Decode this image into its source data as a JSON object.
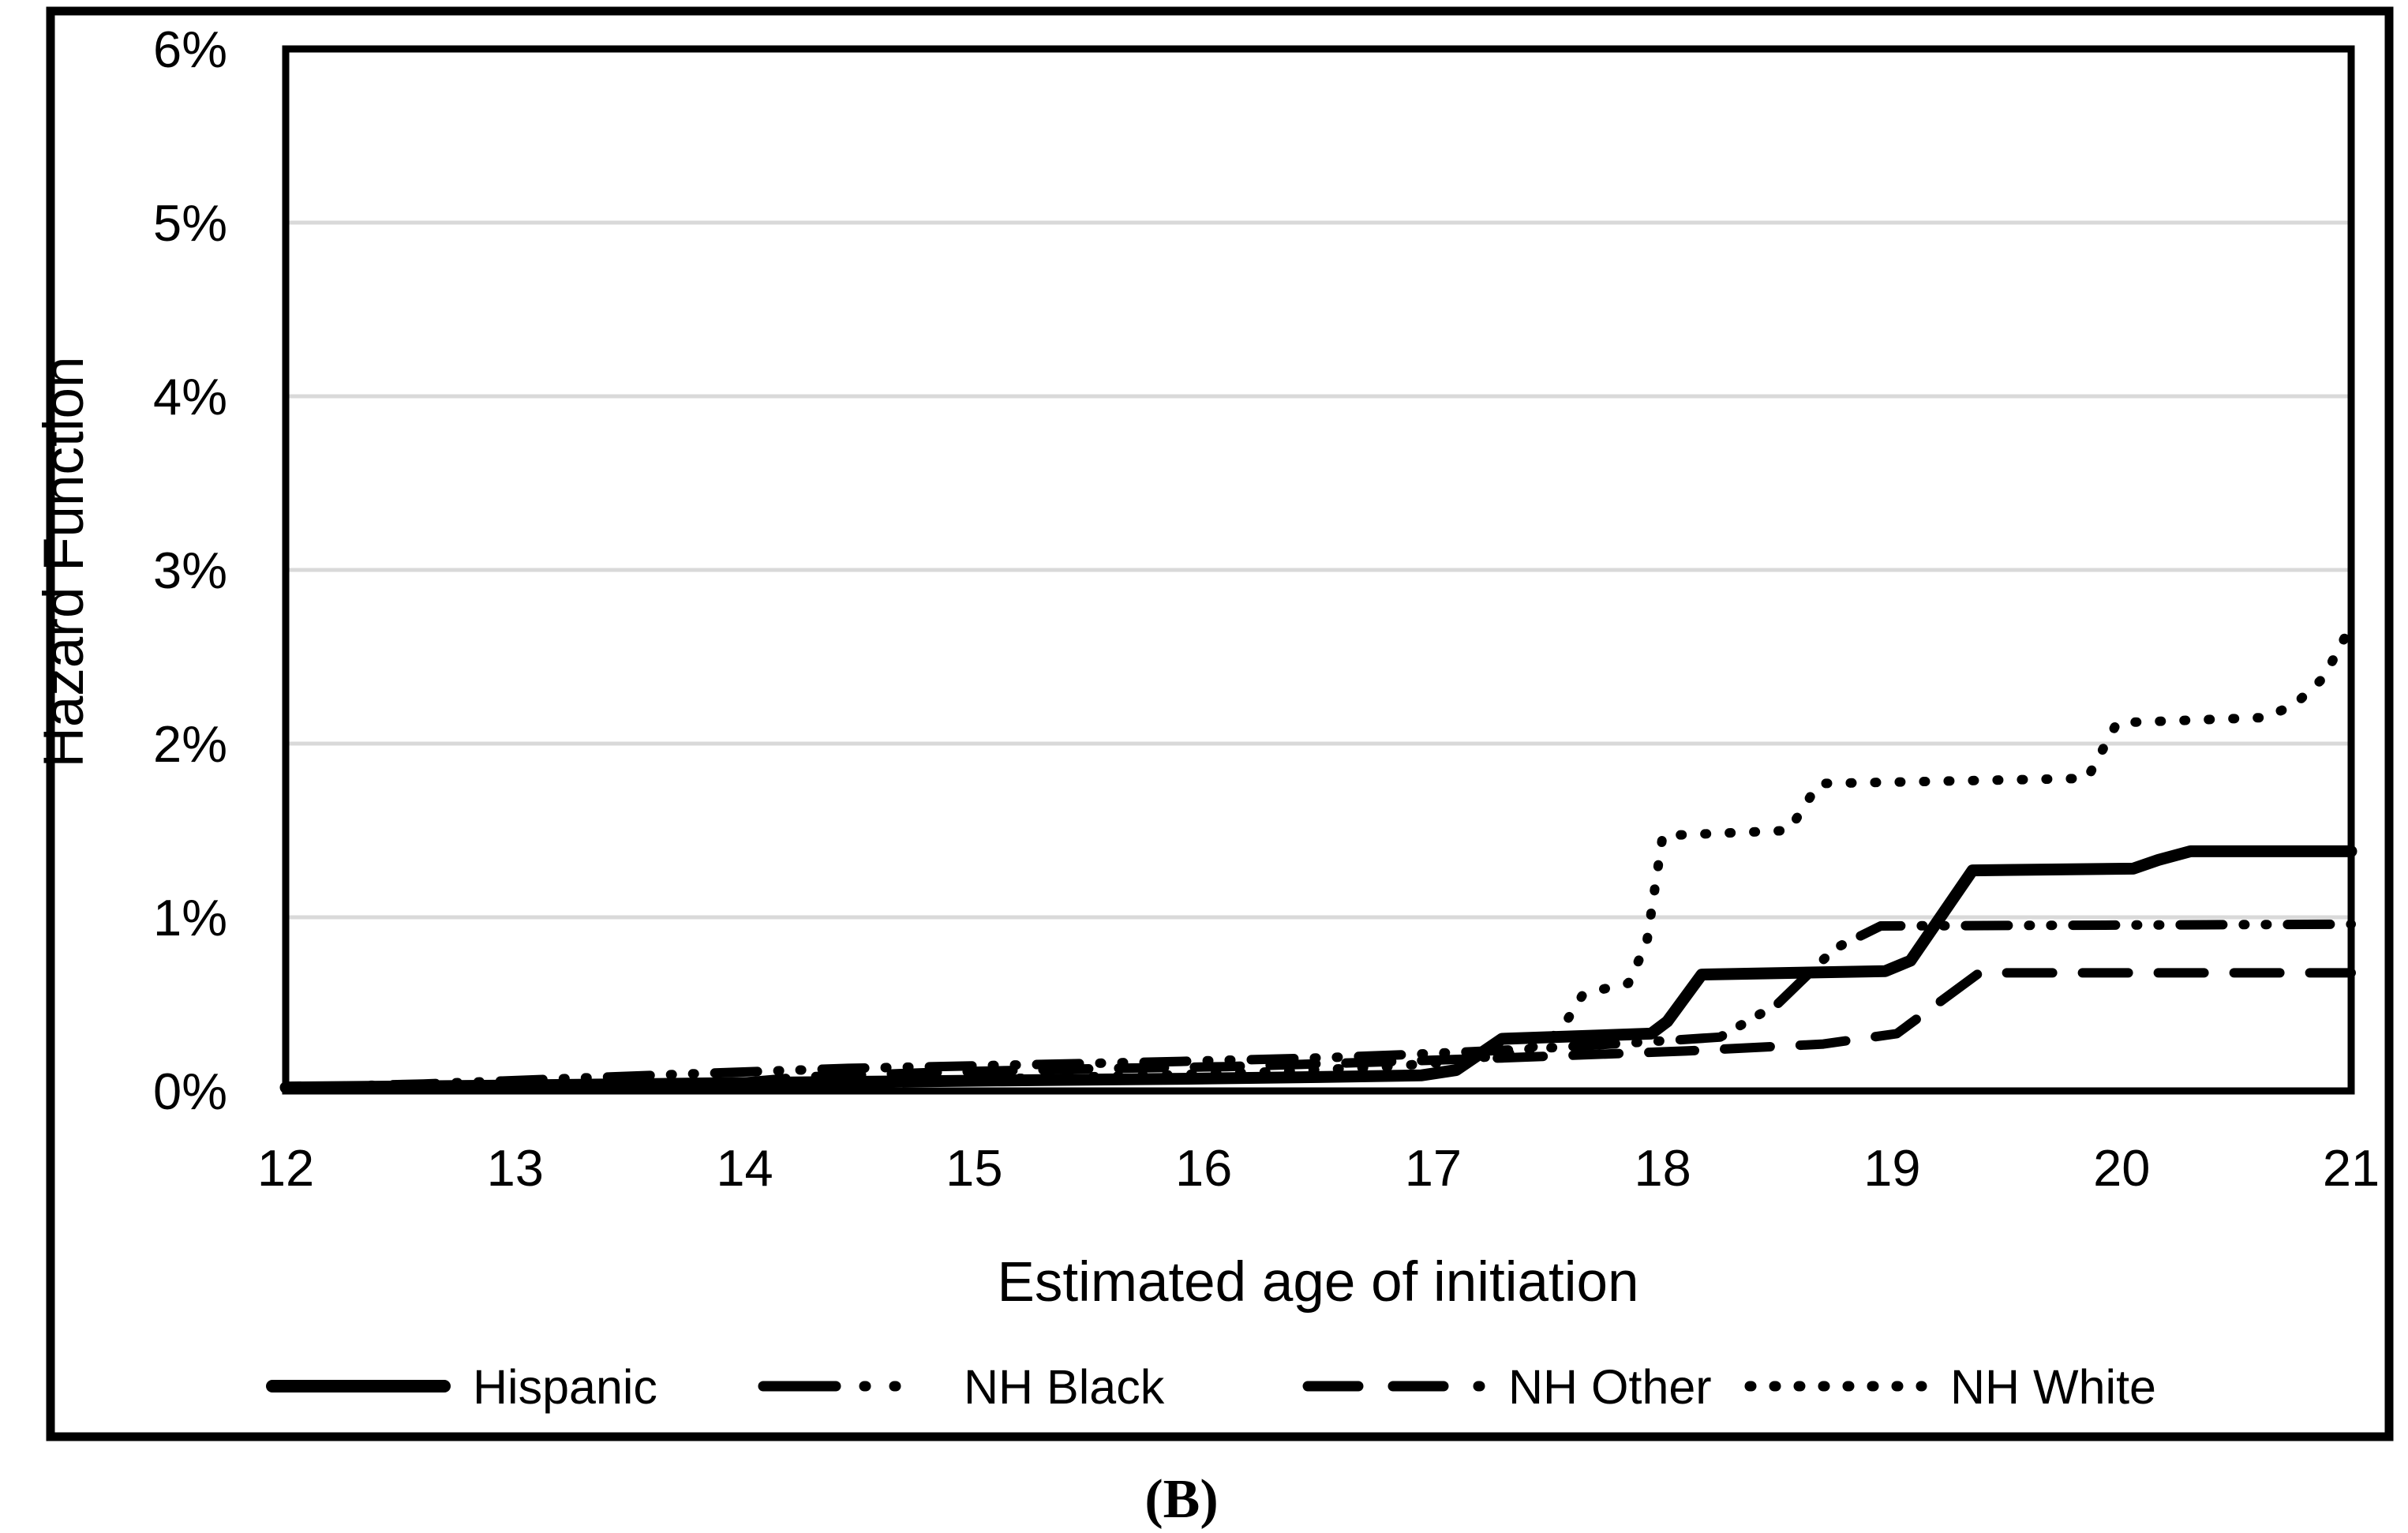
{
  "figure": {
    "panel_label": "(B)"
  },
  "chart_data": {
    "type": "line",
    "title": "",
    "xlabel": "Estimated age of initiation",
    "ylabel": "Hazard Function",
    "xlim": [
      12,
      21
    ],
    "ylim_percent": [
      0,
      6
    ],
    "x_ticks": [
      12,
      13,
      14,
      15,
      16,
      17,
      18,
      19,
      20,
      21
    ],
    "y_ticks": [
      "0%",
      "1%",
      "2%",
      "3%",
      "4%",
      "5%",
      "6%"
    ],
    "grid": "horizontal-gray-lines-at-each-1-percent",
    "legend_position": "bottom",
    "colors": {
      "line": "#000000",
      "gridline": "#d9d9d9",
      "background": "#ffffff",
      "border": "#000000"
    },
    "series": [
      {
        "name": "Hispanic",
        "line_style": "solid",
        "points": [
          [
            12,
            0.02
          ],
          [
            12.9,
            0.03
          ],
          [
            13.6,
            0.04
          ],
          [
            14.3,
            0.05
          ],
          [
            15.1,
            0.06
          ],
          [
            15.9,
            0.07
          ],
          [
            16.5,
            0.08
          ],
          [
            16.95,
            0.09
          ],
          [
            17.1,
            0.12
          ],
          [
            17.3,
            0.3
          ],
          [
            17.95,
            0.33
          ],
          [
            18.02,
            0.4
          ],
          [
            18.17,
            0.67
          ],
          [
            18.97,
            0.69
          ],
          [
            19.08,
            0.75
          ],
          [
            19.35,
            1.27
          ],
          [
            20.05,
            1.28
          ],
          [
            20.16,
            1.33
          ],
          [
            20.3,
            1.38
          ],
          [
            21,
            1.38
          ]
        ]
      },
      {
        "name": "NH Black",
        "line_style": "dash-dot-dot",
        "points": [
          [
            12,
            0.02
          ],
          [
            12.6,
            0.04
          ],
          [
            13.2,
            0.07
          ],
          [
            13.8,
            0.1
          ],
          [
            14.45,
            0.13
          ],
          [
            15.2,
            0.15
          ],
          [
            15.9,
            0.17
          ],
          [
            16.5,
            0.19
          ],
          [
            16.9,
            0.21
          ],
          [
            17.4,
            0.24
          ],
          [
            17.9,
            0.28
          ],
          [
            18.25,
            0.31
          ],
          [
            18.5,
            0.5
          ],
          [
            18.75,
            0.82
          ],
          [
            18.95,
            0.95
          ],
          [
            21,
            0.96
          ]
        ]
      },
      {
        "name": "NH Other",
        "line_style": "dashed",
        "points": [
          [
            12,
            0.01
          ],
          [
            13.2,
            0.02
          ],
          [
            13.9,
            0.04
          ],
          [
            14.25,
            0.08
          ],
          [
            14.9,
            0.11
          ],
          [
            15.6,
            0.13
          ],
          [
            16.1,
            0.14
          ],
          [
            16.6,
            0.16
          ],
          [
            17.3,
            0.19
          ],
          [
            18.1,
            0.23
          ],
          [
            18.7,
            0.27
          ],
          [
            19.02,
            0.33
          ],
          [
            19.38,
            0.68
          ],
          [
            21,
            0.68
          ]
        ]
      },
      {
        "name": "NH White",
        "line_style": "dotted",
        "points": [
          [
            12,
            0.01
          ],
          [
            13,
            0.02
          ],
          [
            13.7,
            0.03
          ],
          [
            14.4,
            0.05
          ],
          [
            15.1,
            0.07
          ],
          [
            15.8,
            0.09
          ],
          [
            16.3,
            0.11
          ],
          [
            16.8,
            0.14
          ],
          [
            17.1,
            0.17
          ],
          [
            17.35,
            0.22
          ],
          [
            17.5,
            0.28
          ],
          [
            17.58,
            0.4
          ],
          [
            17.65,
            0.55
          ],
          [
            17.72,
            0.58
          ],
          [
            17.85,
            0.62
          ],
          [
            17.93,
            0.85
          ],
          [
            18.0,
            1.47
          ],
          [
            18.55,
            1.5
          ],
          [
            18.68,
            1.77
          ],
          [
            19.85,
            1.8
          ],
          [
            19.98,
            2.12
          ],
          [
            20.62,
            2.15
          ],
          [
            20.75,
            2.22
          ],
          [
            20.88,
            2.38
          ],
          [
            21,
            2.68
          ]
        ]
      }
    ]
  }
}
